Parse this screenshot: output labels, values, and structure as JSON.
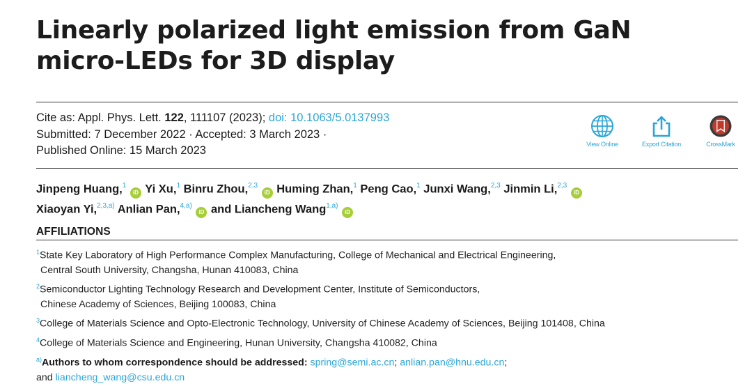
{
  "title": "Linearly polarized light emission from GaN micro-LEDs for 3D display",
  "cite": {
    "prefix": "Cite as: Appl. Phys. Lett. ",
    "volume": "122",
    "article": ", 111107 (2023); ",
    "doi": "doi: 10.1063/5.0137993",
    "submitted": "Submitted: 7 December 2022 · Accepted: 3 March 2023 ·",
    "published": "Published Online: 15 March 2023"
  },
  "actions": [
    {
      "label": "View Online",
      "icon": "globe-icon"
    },
    {
      "label": "Export Citation",
      "icon": "export-icon"
    },
    {
      "label": "CrossMark",
      "icon": "crossmark-icon"
    }
  ],
  "authors": [
    {
      "name": "Jinpeng Huang,",
      "sup": "1",
      "orcid": true
    },
    {
      "name": "Yi Xu,",
      "sup": "1",
      "orcid": false
    },
    {
      "name": "Binru Zhou,",
      "sup": "2,3",
      "orcid": true
    },
    {
      "name": "Huming Zhan,",
      "sup": "1",
      "orcid": false
    },
    {
      "name": "Peng Cao,",
      "sup": "1",
      "orcid": false
    },
    {
      "name": "Junxi Wang,",
      "sup": "2,3",
      "orcid": false
    },
    {
      "name": "Jinmin Li,",
      "sup": "2,3",
      "orcid": true
    },
    {
      "name": "Xiaoyan Yi,",
      "sup": "2,3,a)",
      "orcid": false
    },
    {
      "name": "Anlian Pan,",
      "sup": "4,a)",
      "orcid": true
    },
    {
      "name": "and Liancheng Wang",
      "sup": "1,a)",
      "orcid": true
    }
  ],
  "orcid_label": "iD",
  "affiliations_heading": "AFFILIATIONS",
  "affiliations": [
    {
      "sup": "1",
      "line1": "State Key Laboratory of High Performance Complex Manufacturing, College of Mechanical and Electrical Engineering,",
      "line2": "Central South University, Changsha, Hunan 410083, China"
    },
    {
      "sup": "2",
      "line1": "Semiconductor Lighting Technology Research and Development Center, Institute of Semiconductors,",
      "line2": "Chinese Academy of Sciences, Beijing 100083, China"
    },
    {
      "sup": "3",
      "line1": "College of Materials Science and Opto-Electronic Technology, University of Chinese Academy of Sciences, Beijing 101408, China",
      "line2": ""
    },
    {
      "sup": "4",
      "line1": "College of Materials Science and Engineering, Hunan University, Changsha 410082, China",
      "line2": ""
    }
  ],
  "correspondence": {
    "sup": "a)",
    "label": "Authors to whom correspondence should be addressed: ",
    "email1": "spring@semi.ac.cn",
    "sep1": "; ",
    "email2": "anlian.pan@hnu.edu.cn",
    "sep2": ";",
    "and": "and ",
    "email3": "liancheng_wang@csu.edu.cn"
  },
  "colors": {
    "link": "#2aa6d9",
    "orcid": "#a6ce39",
    "crossmark_red": "#c0392b"
  }
}
